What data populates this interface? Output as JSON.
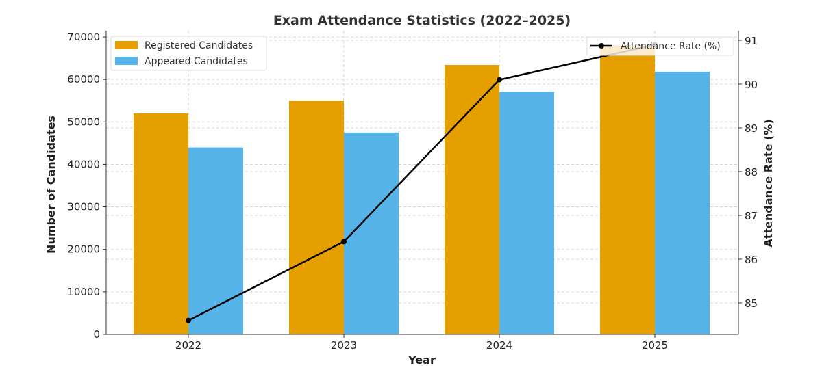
{
  "chart_data": {
    "type": "bar+line",
    "title": "Exam Attendance Statistics (2022–2025)",
    "xlabel": "Year",
    "ylabel": "Number of Candidates",
    "y2label": "Attendance Rate (%)",
    "categories": [
      "2022",
      "2023",
      "2024",
      "2025"
    ],
    "series": [
      {
        "name": "Registered Candidates",
        "type": "bar",
        "axis": "left",
        "color": "#E69F00",
        "values": [
          52000,
          55000,
          63400,
          68000
        ]
      },
      {
        "name": "Appeared Candidates",
        "type": "bar",
        "axis": "left",
        "color": "#56B4E9",
        "values": [
          44000,
          47500,
          57100,
          61800
        ]
      },
      {
        "name": "Attendance Rate (%)",
        "type": "line",
        "axis": "right",
        "color": "#000000",
        "values": [
          84.6,
          86.4,
          90.1,
          90.9
        ]
      }
    ],
    "ylim": [
      0,
      70000
    ],
    "yticks": [
      "0",
      "10000",
      "20000",
      "30000",
      "40000",
      "50000",
      "60000",
      "70000"
    ],
    "y2lim": [
      84.3,
      91.2
    ],
    "y2ticks": [
      "85",
      "86",
      "87",
      "88",
      "89",
      "90",
      "91"
    ],
    "grid": true,
    "legend_bars": "top-left",
    "legend_line": "top-right"
  }
}
